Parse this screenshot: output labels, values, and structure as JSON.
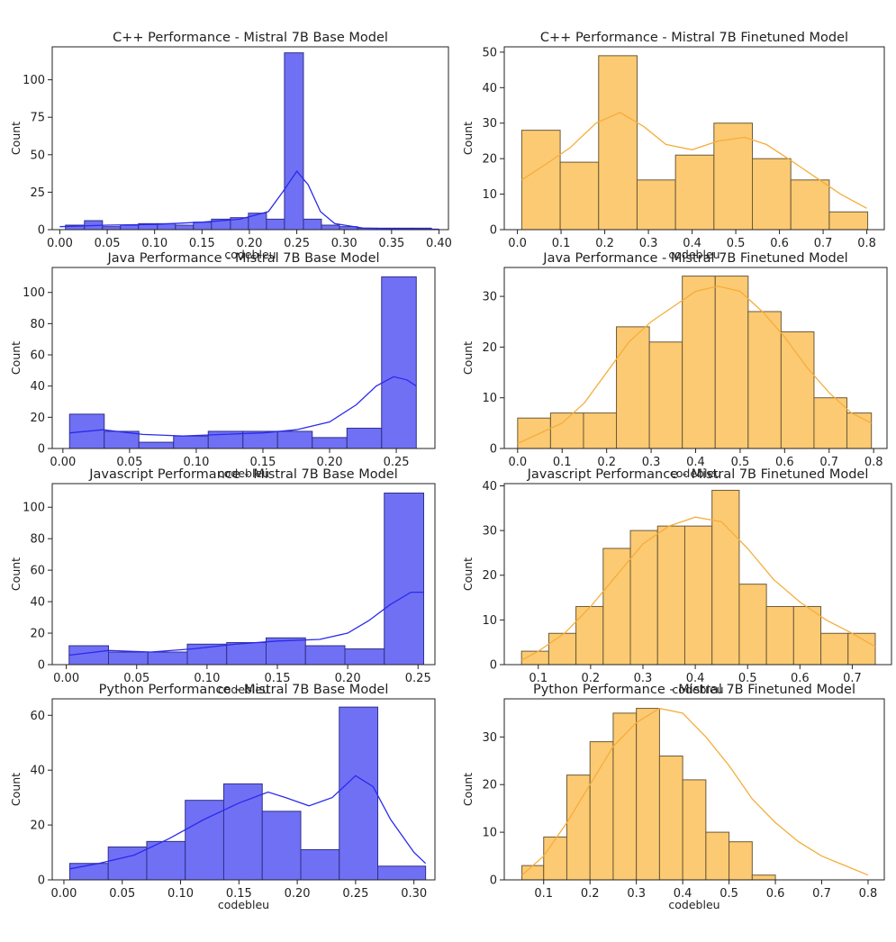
{
  "chart_data": [
    {
      "type": "bar",
      "title": "C++ Performance - Mistral 7B Base Model",
      "xlabel": "codebleu",
      "ylabel": "Count",
      "color": "#7070f5",
      "edge": "#30308a",
      "kde_color": "#2a2aee",
      "xlim": [
        -0.008,
        0.41
      ],
      "ylim": [
        0,
        122
      ],
      "xticks": [
        0.0,
        0.05,
        0.1,
        0.15,
        0.2,
        0.25,
        0.3,
        0.35,
        0.4
      ],
      "xtick_labels": [
        "0.00",
        "0.05",
        "0.10",
        "0.15",
        "0.20",
        "0.25",
        "0.30",
        "0.35",
        "0.40"
      ],
      "yticks": [
        0,
        25,
        50,
        75,
        100
      ],
      "ytick_labels": [
        "0",
        "25",
        "50",
        "75",
        "100"
      ],
      "bins": [
        [
          0.006,
          0.026,
          3
        ],
        [
          0.026,
          0.045,
          6
        ],
        [
          0.045,
          0.064,
          2
        ],
        [
          0.064,
          0.083,
          3
        ],
        [
          0.083,
          0.103,
          4
        ],
        [
          0.103,
          0.122,
          4
        ],
        [
          0.122,
          0.141,
          3
        ],
        [
          0.141,
          0.16,
          5
        ],
        [
          0.16,
          0.18,
          7
        ],
        [
          0.18,
          0.199,
          8
        ],
        [
          0.199,
          0.218,
          11
        ],
        [
          0.218,
          0.237,
          7
        ],
        [
          0.237,
          0.257,
          118
        ],
        [
          0.257,
          0.276,
          7
        ],
        [
          0.276,
          0.295,
          3
        ],
        [
          0.295,
          0.314,
          2
        ],
        [
          0.314,
          0.334,
          1
        ],
        [
          0.334,
          0.353,
          1
        ],
        [
          0.353,
          0.372,
          1
        ],
        [
          0.372,
          0.392,
          1
        ]
      ],
      "kde": [
        [
          0.0,
          2
        ],
        [
          0.05,
          3
        ],
        [
          0.1,
          3.5
        ],
        [
          0.15,
          5
        ],
        [
          0.19,
          7
        ],
        [
          0.22,
          12
        ],
        [
          0.235,
          25
        ],
        [
          0.25,
          39
        ],
        [
          0.262,
          30
        ],
        [
          0.275,
          12
        ],
        [
          0.29,
          4
        ],
        [
          0.32,
          1
        ],
        [
          0.36,
          0.5
        ],
        [
          0.4,
          0.3
        ]
      ]
    },
    {
      "type": "bar",
      "title": "C++ Performance - Mistral 7B Finetuned Model",
      "xlabel": "codebleu",
      "ylabel": "Count",
      "color": "#fcca72",
      "edge": "#6b5a3a",
      "kde_color": "#f5ad3c",
      "xlim": [
        -0.03,
        0.84
      ],
      "ylim": [
        0,
        51.5
      ],
      "xticks": [
        0.0,
        0.1,
        0.2,
        0.3,
        0.4,
        0.5,
        0.6,
        0.7,
        0.8
      ],
      "xtick_labels": [
        "0.0",
        "0.1",
        "0.2",
        "0.3",
        "0.4",
        "0.5",
        "0.6",
        "0.7",
        "0.8"
      ],
      "yticks": [
        0,
        10,
        20,
        30,
        40,
        50
      ],
      "ytick_labels": [
        "0",
        "10",
        "20",
        "30",
        "40",
        "50"
      ],
      "bins": [
        [
          0.01,
          0.098,
          28
        ],
        [
          0.098,
          0.186,
          19
        ],
        [
          0.186,
          0.274,
          49
        ],
        [
          0.274,
          0.362,
          14
        ],
        [
          0.362,
          0.45,
          21
        ],
        [
          0.45,
          0.538,
          30
        ],
        [
          0.538,
          0.626,
          20
        ],
        [
          0.626,
          0.714,
          14
        ],
        [
          0.714,
          0.802,
          5
        ]
      ],
      "kde": [
        [
          0.01,
          14
        ],
        [
          0.06,
          18
        ],
        [
          0.12,
          23
        ],
        [
          0.18,
          30
        ],
        [
          0.235,
          33
        ],
        [
          0.29,
          29
        ],
        [
          0.34,
          24
        ],
        [
          0.4,
          22.5
        ],
        [
          0.46,
          25
        ],
        [
          0.52,
          26
        ],
        [
          0.57,
          24
        ],
        [
          0.62,
          20
        ],
        [
          0.68,
          15
        ],
        [
          0.74,
          10
        ],
        [
          0.8,
          6
        ]
      ]
    },
    {
      "type": "bar",
      "title": "Java Performance - Mistral 7B Base Model",
      "xlabel": "codebleu",
      "ylabel": "Count",
      "color": "#7070f5",
      "edge": "#30308a",
      "kde_color": "#2a2aee",
      "xlim": [
        -0.008,
        0.279
      ],
      "ylim": [
        0,
        116
      ],
      "xticks": [
        0.0,
        0.05,
        0.1,
        0.15,
        0.2,
        0.25
      ],
      "xtick_labels": [
        "0.00",
        "0.05",
        "0.10",
        "0.15",
        "0.20",
        "0.25"
      ],
      "yticks": [
        0,
        20,
        40,
        60,
        80,
        100
      ],
      "ytick_labels": [
        "0",
        "20",
        "40",
        "60",
        "80",
        "100"
      ],
      "bins": [
        [
          0.005,
          0.031,
          22
        ],
        [
          0.031,
          0.057,
          11
        ],
        [
          0.057,
          0.083,
          4
        ],
        [
          0.083,
          0.109,
          8
        ],
        [
          0.109,
          0.135,
          11
        ],
        [
          0.135,
          0.161,
          11
        ],
        [
          0.161,
          0.187,
          11
        ],
        [
          0.187,
          0.213,
          7
        ],
        [
          0.213,
          0.239,
          13
        ],
        [
          0.239,
          0.265,
          110
        ]
      ],
      "kde": [
        [
          0.005,
          10
        ],
        [
          0.03,
          12
        ],
        [
          0.06,
          9
        ],
        [
          0.09,
          8
        ],
        [
          0.12,
          9
        ],
        [
          0.15,
          10
        ],
        [
          0.175,
          12
        ],
        [
          0.2,
          17
        ],
        [
          0.22,
          28
        ],
        [
          0.235,
          40
        ],
        [
          0.248,
          46
        ],
        [
          0.258,
          44
        ],
        [
          0.265,
          40
        ]
      ]
    },
    {
      "type": "bar",
      "title": "Java Performance - Mistral 7B Finetuned Model",
      "xlabel": "codebleu",
      "ylabel": "Count",
      "color": "#fcca72",
      "edge": "#6b5a3a",
      "kde_color": "#f5ad3c",
      "xlim": [
        -0.03,
        0.83
      ],
      "ylim": [
        0,
        35.7
      ],
      "xticks": [
        0.0,
        0.1,
        0.2,
        0.3,
        0.4,
        0.5,
        0.6,
        0.7,
        0.8
      ],
      "xtick_labels": [
        "0.0",
        "0.1",
        "0.2",
        "0.3",
        "0.4",
        "0.5",
        "0.6",
        "0.7",
        "0.8"
      ],
      "yticks": [
        0,
        10,
        20,
        30
      ],
      "ytick_labels": [
        "0",
        "10",
        "20",
        "30"
      ],
      "bins": [
        [
          0.0,
          0.074,
          6
        ],
        [
          0.074,
          0.148,
          7
        ],
        [
          0.148,
          0.222,
          7
        ],
        [
          0.222,
          0.296,
          24
        ],
        [
          0.296,
          0.37,
          21
        ],
        [
          0.37,
          0.444,
          34
        ],
        [
          0.444,
          0.518,
          34
        ],
        [
          0.518,
          0.592,
          27
        ],
        [
          0.592,
          0.666,
          23
        ],
        [
          0.666,
          0.74,
          10
        ],
        [
          0.74,
          0.795,
          7
        ]
      ],
      "kde": [
        [
          0.0,
          1
        ],
        [
          0.05,
          3
        ],
        [
          0.1,
          5
        ],
        [
          0.15,
          9
        ],
        [
          0.2,
          15
        ],
        [
          0.25,
          21
        ],
        [
          0.3,
          25
        ],
        [
          0.35,
          28
        ],
        [
          0.4,
          31
        ],
        [
          0.45,
          32
        ],
        [
          0.5,
          31
        ],
        [
          0.55,
          27
        ],
        [
          0.6,
          22
        ],
        [
          0.65,
          16
        ],
        [
          0.7,
          11
        ],
        [
          0.75,
          7
        ],
        [
          0.795,
          5
        ]
      ]
    },
    {
      "type": "bar",
      "title": "Javascript Performance - Mistral 7B Base Model",
      "xlabel": "codebleu",
      "ylabel": "Count",
      "color": "#7070f5",
      "edge": "#30308a",
      "kde_color": "#2a2aee",
      "xlim": [
        -0.01,
        0.262
      ],
      "ylim": [
        0,
        115
      ],
      "xticks": [
        0.0,
        0.05,
        0.1,
        0.15,
        0.2,
        0.25
      ],
      "xtick_labels": [
        "0.00",
        "0.05",
        "0.10",
        "0.15",
        "0.20",
        "0.25"
      ],
      "yticks": [
        0,
        20,
        40,
        60,
        80,
        100
      ],
      "ytick_labels": [
        "0",
        "20",
        "40",
        "60",
        "80",
        "100"
      ],
      "bins": [
        [
          0.002,
          0.03,
          12
        ],
        [
          0.03,
          0.058,
          8
        ],
        [
          0.058,
          0.086,
          8
        ],
        [
          0.086,
          0.114,
          13
        ],
        [
          0.114,
          0.142,
          14
        ],
        [
          0.142,
          0.17,
          17
        ],
        [
          0.17,
          0.198,
          12
        ],
        [
          0.198,
          0.226,
          10
        ],
        [
          0.226,
          0.254,
          109
        ]
      ],
      "kde": [
        [
          0.002,
          6
        ],
        [
          0.03,
          9
        ],
        [
          0.06,
          8
        ],
        [
          0.09,
          10
        ],
        [
          0.12,
          13
        ],
        [
          0.15,
          15
        ],
        [
          0.18,
          16
        ],
        [
          0.2,
          20
        ],
        [
          0.215,
          28
        ],
        [
          0.23,
          38
        ],
        [
          0.245,
          46
        ],
        [
          0.254,
          46
        ]
      ]
    },
    {
      "type": "bar",
      "title": "Javascript Performance - Mistral 7B Finetuned Model",
      "xlabel": "codebleu",
      "ylabel": "Count",
      "color": "#fcca72",
      "edge": "#6b5a3a",
      "kde_color": "#f5ad3c",
      "xlim": [
        0.035,
        0.775
      ],
      "ylim": [
        0,
        40.5
      ],
      "xticks": [
        0.1,
        0.2,
        0.3,
        0.4,
        0.5,
        0.6,
        0.7
      ],
      "xtick_labels": [
        "0.1",
        "0.2",
        "0.3",
        "0.4",
        "0.5",
        "0.6",
        "0.7"
      ],
      "yticks": [
        0,
        10,
        20,
        30,
        40
      ],
      "ytick_labels": [
        "0",
        "10",
        "20",
        "30",
        "40"
      ],
      "bins": [
        [
          0.068,
          0.12,
          3
        ],
        [
          0.12,
          0.172,
          7
        ],
        [
          0.172,
          0.224,
          13
        ],
        [
          0.224,
          0.276,
          26
        ],
        [
          0.276,
          0.328,
          30
        ],
        [
          0.328,
          0.38,
          31
        ],
        [
          0.38,
          0.432,
          31
        ],
        [
          0.432,
          0.484,
          39
        ],
        [
          0.484,
          0.536,
          18
        ],
        [
          0.536,
          0.588,
          13
        ],
        [
          0.588,
          0.64,
          13
        ],
        [
          0.64,
          0.692,
          7
        ],
        [
          0.692,
          0.744,
          7
        ]
      ],
      "kde": [
        [
          0.068,
          1
        ],
        [
          0.1,
          3
        ],
        [
          0.15,
          7
        ],
        [
          0.2,
          13
        ],
        [
          0.25,
          20
        ],
        [
          0.3,
          27
        ],
        [
          0.35,
          31
        ],
        [
          0.4,
          33
        ],
        [
          0.45,
          32
        ],
        [
          0.5,
          26
        ],
        [
          0.55,
          19
        ],
        [
          0.6,
          14
        ],
        [
          0.65,
          10
        ],
        [
          0.7,
          7
        ],
        [
          0.744,
          4
        ]
      ]
    },
    {
      "type": "bar",
      "title": "Python Performance - Mistral 7B Base Model",
      "xlabel": "codebleu",
      "ylabel": "Count",
      "color": "#7070f5",
      "edge": "#30308a",
      "kde_color": "#2a2aee",
      "xlim": [
        -0.01,
        0.318
      ],
      "ylim": [
        0,
        66
      ],
      "xticks": [
        0.0,
        0.05,
        0.1,
        0.15,
        0.2,
        0.25,
        0.3
      ],
      "xtick_labels": [
        "0.00",
        "0.05",
        "0.10",
        "0.15",
        "0.20",
        "0.25",
        "0.30"
      ],
      "yticks": [
        0,
        20,
        40,
        60
      ],
      "ytick_labels": [
        "0",
        "20",
        "40",
        "60"
      ],
      "bins": [
        [
          0.005,
          0.038,
          6
        ],
        [
          0.038,
          0.071,
          12
        ],
        [
          0.071,
          0.104,
          14
        ],
        [
          0.104,
          0.137,
          29
        ],
        [
          0.137,
          0.17,
          35
        ],
        [
          0.17,
          0.203,
          25
        ],
        [
          0.203,
          0.236,
          11
        ],
        [
          0.236,
          0.269,
          63
        ],
        [
          0.269,
          0.31,
          5
        ]
      ],
      "kde": [
        [
          0.005,
          4
        ],
        [
          0.03,
          6
        ],
        [
          0.06,
          9
        ],
        [
          0.09,
          15
        ],
        [
          0.12,
          22
        ],
        [
          0.15,
          28
        ],
        [
          0.175,
          32
        ],
        [
          0.19,
          30
        ],
        [
          0.21,
          27
        ],
        [
          0.23,
          30
        ],
        [
          0.25,
          38
        ],
        [
          0.265,
          34
        ],
        [
          0.28,
          22
        ],
        [
          0.3,
          10
        ],
        [
          0.31,
          6
        ]
      ]
    },
    {
      "type": "bar",
      "title": "Python Performance - Mistral 7B Finetuned Model",
      "xlabel": "codebleu",
      "ylabel": "Count",
      "color": "#fcca72",
      "edge": "#6b5a3a",
      "kde_color": "#f5ad3c",
      "xlim": [
        0.015,
        0.835
      ],
      "ylim": [
        0,
        38
      ],
      "xticks": [
        0.1,
        0.2,
        0.3,
        0.4,
        0.5,
        0.6,
        0.7,
        0.8
      ],
      "xtick_labels": [
        "0.1",
        "0.2",
        "0.3",
        "0.4",
        "0.5",
        "0.6",
        "0.7",
        "0.8"
      ],
      "yticks": [
        0,
        10,
        20,
        30
      ],
      "ytick_labels": [
        "0",
        "10",
        "20",
        "30"
      ],
      "bins": [
        [
          0.053,
          0.1,
          3
        ],
        [
          0.1,
          0.148,
          9
        ],
        [
          0.148,
          0.196,
          22
        ],
        [
          0.196,
          0.244,
          29
        ],
        [
          0.244,
          0.292,
          35
        ],
        [
          0.292,
          0.34,
          36
        ],
        [
          0.34,
          0.388,
          26
        ],
        [
          0.388,
          0.436,
          21
        ],
        [
          0.436,
          0.484,
          10
        ],
        [
          0.484,
          0.532,
          8
        ],
        [
          0.532,
          0.58,
          1
        ]
      ],
      "kde": [
        [
          0.053,
          1
        ],
        [
          0.1,
          5
        ],
        [
          0.15,
          12
        ],
        [
          0.2,
          20
        ],
        [
          0.25,
          28
        ],
        [
          0.3,
          33
        ],
        [
          0.35,
          36
        ],
        [
          0.4,
          35
        ],
        [
          0.45,
          30
        ],
        [
          0.5,
          24
        ],
        [
          0.55,
          17
        ],
        [
          0.6,
          12
        ],
        [
          0.65,
          8
        ],
        [
          0.7,
          5
        ],
        [
          0.75,
          3
        ],
        [
          0.8,
          1
        ]
      ]
    }
  ]
}
